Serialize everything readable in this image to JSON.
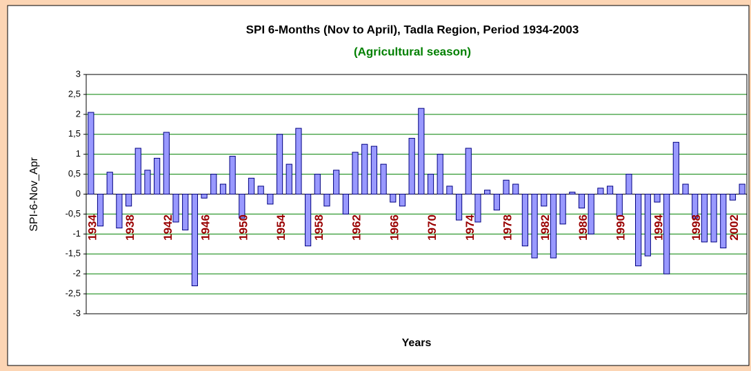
{
  "chart_data": {
    "type": "bar",
    "title": "SPI 6-Months (Nov to April), Tadla Region, Period  1934-2003",
    "subtitle": "(Agricultural season)",
    "xlabel": "Years",
    "ylabel": "SPI-6-Nov_Apr",
    "categories": [
      "1934",
      null,
      null,
      null,
      "1938",
      null,
      null,
      null,
      "1942",
      null,
      null,
      null,
      "1946",
      null,
      null,
      null,
      "1950",
      null,
      null,
      null,
      "1954",
      null,
      null,
      null,
      "1958",
      null,
      null,
      null,
      "1962",
      null,
      null,
      null,
      "1966",
      null,
      null,
      null,
      "1970",
      null,
      null,
      null,
      "1974",
      null,
      null,
      null,
      "1978",
      null,
      null,
      null,
      "1982",
      null,
      null,
      null,
      "1986",
      null,
      null,
      null,
      "1990",
      null,
      null,
      null,
      "1994",
      null,
      null,
      null,
      "1998",
      null,
      null,
      null,
      "2002",
      null
    ],
    "values": [
      2.05,
      -0.8,
      0.55,
      -0.85,
      -0.3,
      1.15,
      0.6,
      0.9,
      1.55,
      -0.7,
      -0.9,
      -2.3,
      -0.1,
      0.5,
      0.25,
      0.95,
      -0.6,
      0.4,
      0.2,
      -0.25,
      1.5,
      0.75,
      1.65,
      -1.3,
      0.5,
      -0.3,
      0.6,
      -0.5,
      1.05,
      1.25,
      1.2,
      0.75,
      -0.2,
      -0.3,
      1.4,
      2.15,
      0.5,
      1.0,
      0.2,
      -0.65,
      1.15,
      -0.7,
      0.1,
      -0.4,
      0.35,
      0.25,
      -1.3,
      -1.6,
      -0.3,
      -1.6,
      -0.75,
      0.05,
      -0.35,
      -1.0,
      0.15,
      0.2,
      -0.55,
      0.5,
      -1.8,
      -1.55,
      -0.2,
      -2.0,
      1.3,
      0.25,
      -0.6,
      -1.2,
      -1.2,
      -1.35,
      -0.15,
      0.25
    ],
    "color": "#9999ff",
    "edge_color": "#000080",
    "category_label_color": "#990000",
    "subtitle_color": "#008000",
    "ylim": [
      -3,
      3
    ],
    "yticks": [
      -3,
      {
        "value": -2.5,
        "label": "-2,5"
      },
      -2,
      {
        "value": -1.5,
        "label": "-1,5"
      },
      -1,
      {
        "value": -0.5,
        "label": "-0,5"
      },
      0,
      {
        "value": 0.5,
        "label": "0,5"
      },
      1,
      {
        "value": 1.5,
        "label": "1,5"
      },
      2,
      {
        "value": 2.5,
        "label": "2,5"
      },
      3
    ],
    "grid": true,
    "grid_color": "#008000"
  }
}
